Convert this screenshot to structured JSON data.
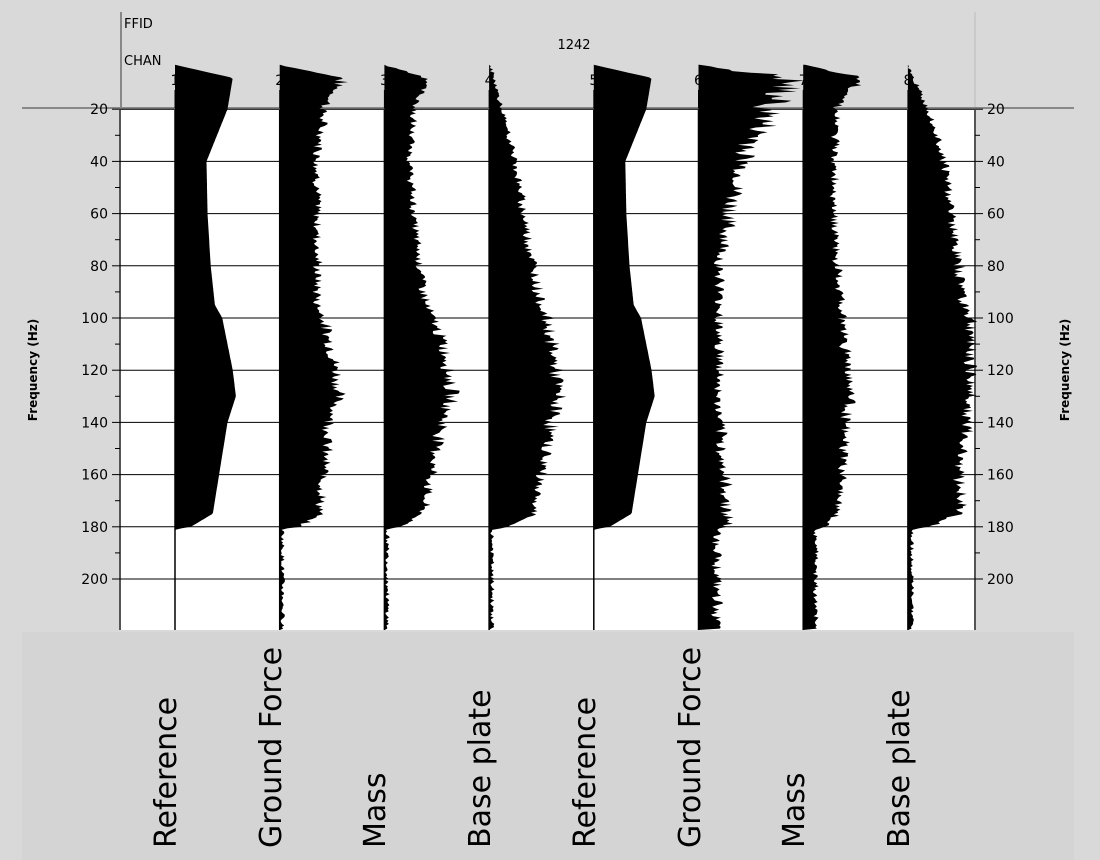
{
  "chart_data": {
    "type": "area",
    "header": {
      "ffid_label": "FFID",
      "chan_label": "CHAN",
      "ffid_value": "1242"
    },
    "channels": [
      "1",
      "2",
      "3",
      "4",
      "5",
      "6",
      "7",
      "8"
    ],
    "ylabel_left": "Frequency (Hz)",
    "ylabel_right": "Frequency (Hz)",
    "y_ticks": [
      "20",
      "40",
      "60",
      "80",
      "100",
      "120",
      "140",
      "160",
      "180",
      "200"
    ],
    "ylim": [
      0,
      200
    ],
    "y_reversed": true,
    "grid": true,
    "frequency_hz": [
      3,
      8,
      20,
      40,
      60,
      80,
      95,
      100,
      110,
      120,
      130,
      140,
      160,
      175,
      180,
      181,
      200
    ],
    "series": [
      {
        "name": "Reference",
        "channel": "1",
        "noisy": false,
        "amplitude": [
          0,
          0.55,
          0.5,
          0.3,
          0.31,
          0.34,
          0.38,
          0.45,
          0.5,
          0.55,
          0.58,
          0.5,
          0.42,
          0.36,
          0.15,
          0.0,
          0.0
        ]
      },
      {
        "name": "Ground Force",
        "channel": "2",
        "noisy": true,
        "amplitude": [
          0,
          0.6,
          0.42,
          0.36,
          0.36,
          0.36,
          0.36,
          0.42,
          0.48,
          0.54,
          0.56,
          0.48,
          0.42,
          0.38,
          0.18,
          0.03,
          0.03
        ]
      },
      {
        "name": "Mass",
        "channel": "3",
        "noisy": true,
        "amplitude": [
          0,
          0.42,
          0.28,
          0.24,
          0.28,
          0.34,
          0.4,
          0.46,
          0.56,
          0.62,
          0.64,
          0.56,
          0.45,
          0.36,
          0.15,
          0.03,
          0.03
        ]
      },
      {
        "name": "Base plate",
        "channel": "4",
        "noisy": true,
        "amplitude": [
          0,
          0.05,
          0.12,
          0.25,
          0.33,
          0.42,
          0.5,
          0.55,
          0.6,
          0.64,
          0.66,
          0.6,
          0.5,
          0.42,
          0.18,
          0.03,
          0.03
        ]
      },
      {
        "name": "Reference",
        "channel": "5",
        "noisy": false,
        "amplitude": [
          0,
          0.55,
          0.5,
          0.3,
          0.31,
          0.34,
          0.38,
          0.45,
          0.5,
          0.55,
          0.58,
          0.5,
          0.42,
          0.36,
          0.15,
          0.0,
          0.0
        ]
      },
      {
        "name": "Ground Force",
        "channel": "6",
        "noisy": true,
        "amplitude": [
          0,
          0.85,
          0.68,
          0.42,
          0.3,
          0.2,
          0.2,
          0.2,
          0.2,
          0.2,
          0.18,
          0.2,
          0.24,
          0.28,
          0.28,
          0.18,
          0.18
        ]
      },
      {
        "name": "Mass",
        "channel": "7",
        "noisy": true,
        "amplitude": [
          0,
          0.55,
          0.32,
          0.3,
          0.3,
          0.32,
          0.36,
          0.38,
          0.4,
          0.44,
          0.46,
          0.4,
          0.38,
          0.32,
          0.2,
          0.12,
          0.12
        ]
      },
      {
        "name": "Base plate",
        "channel": "8",
        "noisy": true,
        "amplitude": [
          0,
          0.05,
          0.2,
          0.35,
          0.42,
          0.48,
          0.55,
          0.6,
          0.6,
          0.6,
          0.6,
          0.56,
          0.5,
          0.5,
          0.2,
          0.04,
          0.04
        ]
      }
    ]
  }
}
